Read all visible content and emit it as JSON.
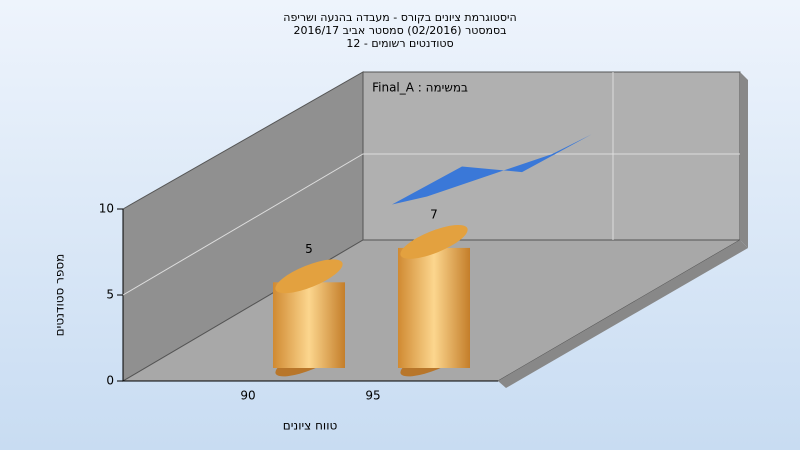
{
  "chart_data": {
    "type": "bar",
    "title": [
      "היסטוגרמת ציונים בקורס - מעבדה בהנעה ושריפה",
      "בסמסטר  (02/2016)  סמסטר אביב 2016/17",
      "סטודנטים רשומים - 12"
    ],
    "annotation": "Final_A : במשימה",
    "x_label": "טווח ציונים",
    "y_label": "מספר סטודנטים",
    "categories": [
      "90",
      "95"
    ],
    "series": [
      {
        "type": "bar",
        "color": "#e8a94f",
        "values": [
          5,
          7
        ]
      },
      {
        "type": "line",
        "color": "#3a78d8",
        "values": [
          6.8,
          8.8
        ]
      }
    ],
    "ylim": [
      0,
      10
    ],
    "yticks": [
      0,
      5,
      10
    ],
    "grid": true
  }
}
